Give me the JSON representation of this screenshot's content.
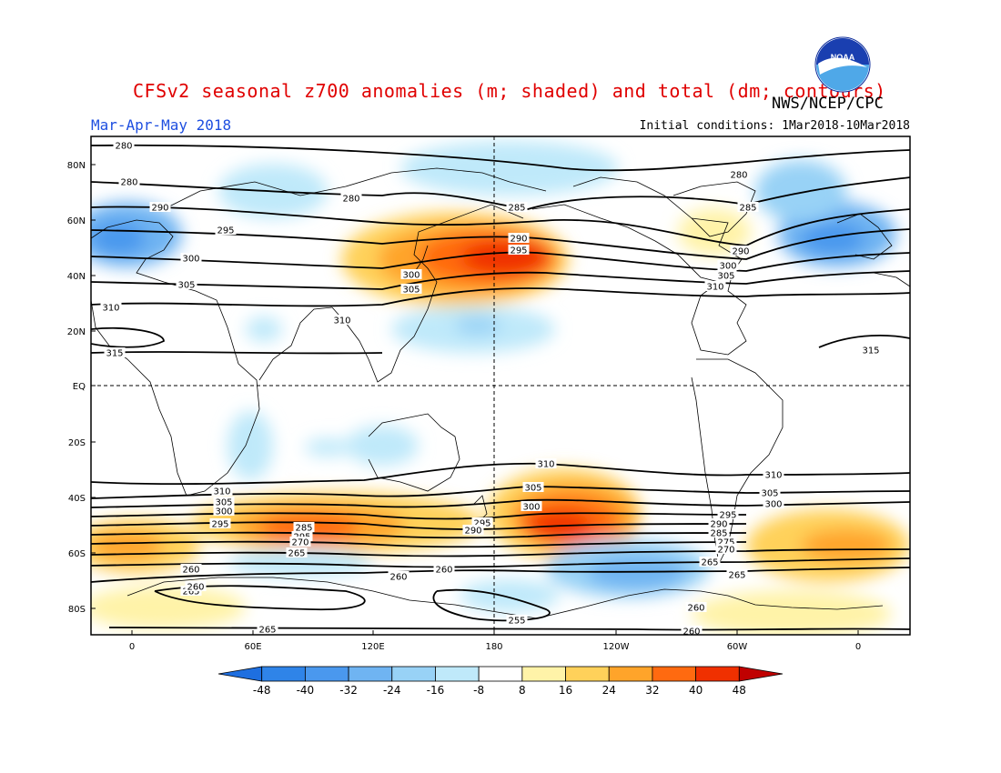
{
  "header": {
    "title": "CFSv2 seasonal z700 anomalies (m; shaded) and total (dm; contours)",
    "agency": "NWS/NCEP/CPC",
    "season": "Mar-Apr-May 2018",
    "initial_conditions": "Initial conditions: 1Mar2018-10Mar2018",
    "logo_text": "NOAA"
  },
  "map": {
    "lat_labels": [
      "80N",
      "60N",
      "40N",
      "20N",
      "EQ",
      "20S",
      "40S",
      "60S",
      "80S"
    ],
    "lon_labels": [
      "0",
      "60E",
      "120E",
      "180",
      "120W",
      "60W",
      "0"
    ],
    "contour_labels": [
      "280",
      "285",
      "290",
      "295",
      "300",
      "305",
      "310",
      "315",
      "310",
      "305",
      "300",
      "295",
      "290",
      "285",
      "280",
      "275",
      "270",
      "265",
      "260",
      "255"
    ]
  },
  "colorbar": {
    "labels": [
      "-48",
      "-40",
      "-32",
      "-24",
      "-16",
      "-8",
      "8",
      "16",
      "24",
      "32",
      "40",
      "48"
    ],
    "colors": [
      "#1e6fe0",
      "#2f84e8",
      "#4a98ee",
      "#6fb4f2",
      "#98d2f6",
      "#bfe9fa",
      "#ffffff",
      "#fff3a8",
      "#ffd15a",
      "#ffa42a",
      "#ff6a10",
      "#f03000",
      "#c00000"
    ]
  }
}
